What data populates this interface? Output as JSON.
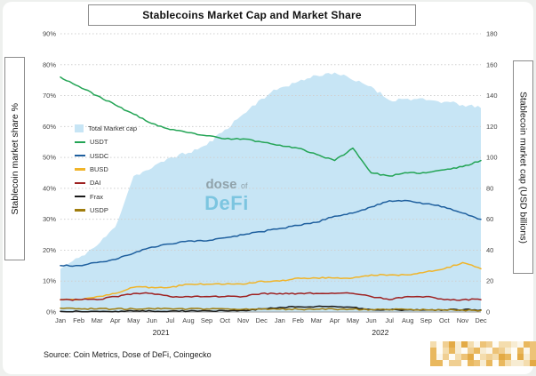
{
  "page": {
    "title": "Stablecoins Market Cap and Market Share",
    "source": "Source: Coin Metrics, Dose of DeFi, Coingecko",
    "watermark": {
      "dose": "dose",
      "of": "of",
      "defi": "DeFi"
    }
  },
  "chart_data": {
    "type": "area+line",
    "title": "Stablecoins Market Cap and Market Share",
    "grid": "horizontal-dotted",
    "legend_position": "inside-left",
    "x_tick_labels": [
      "Jan",
      "Feb",
      "Mar",
      "Apr",
      "May",
      "Jun",
      "Jul",
      "Aug",
      "Sep",
      "Oct",
      "Nov",
      "Dec",
      "Jan",
      "Feb",
      "Mar",
      "Apr",
      "May",
      "Jun",
      "Jul",
      "Aug",
      "Sep",
      "Oct",
      "Nov",
      "Dec"
    ],
    "year_labels": [
      {
        "label": "2021",
        "center_index": 5.5
      },
      {
        "label": "2022",
        "center_index": 17.5
      }
    ],
    "left_axis": {
      "label": "Stablecoin market share %",
      "min": 0,
      "max": 90,
      "tick_step": 10,
      "tick_suffix": "%"
    },
    "right_axis": {
      "label": "Stablecoin market cap (USD billions)",
      "min": 0,
      "max": 180,
      "tick_step": 20
    },
    "area_series": {
      "name": "Total Market cap",
      "axis": "right",
      "color": "#c7e5f5",
      "values": [
        28,
        35,
        43,
        55,
        88,
        93,
        100,
        103,
        108,
        118,
        128,
        138,
        145,
        149,
        153,
        155,
        150,
        146,
        137,
        138,
        137,
        136,
        134,
        132
      ]
    },
    "series": [
      {
        "name": "USDT",
        "axis": "left",
        "color": "#23a455",
        "values": [
          76,
          73,
          70,
          67,
          64,
          61,
          59,
          58,
          57,
          56,
          56,
          55,
          54,
          53,
          51,
          49,
          53,
          45,
          44,
          45,
          45,
          46,
          47,
          49
        ]
      },
      {
        "name": "USDC",
        "axis": "left",
        "color": "#1e5f9e",
        "values": [
          15,
          15,
          16,
          17,
          19,
          21,
          22,
          23,
          23,
          24,
          25,
          26,
          27,
          28,
          29,
          31,
          32,
          34,
          36,
          36,
          35,
          34,
          32,
          30
        ]
      },
      {
        "name": "BUSD",
        "axis": "left",
        "color": "#f0b429",
        "values": [
          4,
          4,
          5,
          6,
          8,
          8,
          8,
          9,
          9,
          9,
          9,
          10,
          10,
          11,
          11,
          11,
          11,
          12,
          12,
          12,
          13,
          14,
          16,
          14
        ]
      },
      {
        "name": "DAI",
        "axis": "left",
        "color": "#9e2121",
        "values": [
          4,
          4,
          4,
          5,
          6,
          6,
          5,
          5,
          5,
          5,
          5,
          6,
          6,
          6,
          6,
          6,
          6,
          5,
          4,
          5,
          5,
          4,
          4,
          4
        ]
      },
      {
        "name": "Frax",
        "axis": "left",
        "color": "#1a1a1a",
        "values": [
          0.2,
          0.2,
          0.2,
          0.2,
          0.3,
          0.3,
          0.3,
          0.3,
          0.4,
          0.4,
          0.5,
          1.0,
          1.5,
          1.7,
          1.8,
          1.8,
          1.5,
          0.8,
          0.7,
          0.7,
          0.7,
          0.7,
          0.7,
          0.7
        ]
      },
      {
        "name": "USDP",
        "axis": "left",
        "color": "#a07d0e",
        "values": [
          1.2,
          1.1,
          1.0,
          1.0,
          1.0,
          1.1,
          1.1,
          1.0,
          1.0,
          1.0,
          0.9,
          0.9,
          0.9,
          0.9,
          0.9,
          0.9,
          0.9,
          0.8,
          0.8,
          0.8,
          0.7,
          0.6,
          0.6,
          0.5
        ]
      }
    ]
  }
}
